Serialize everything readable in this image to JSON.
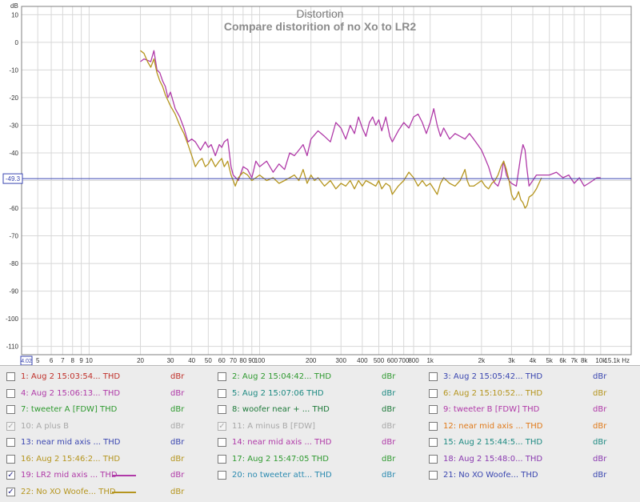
{
  "chart_data": {
    "type": "line",
    "title": "Distortion",
    "subtitle": "Compare distorition of no Xo to LR2",
    "ylabel": "dB",
    "x_scale": "log",
    "xlim": [
      4.02,
      15100
    ],
    "ylim": [
      -113,
      13
    ],
    "y_ticks": [
      10,
      0,
      -10,
      -20,
      -30,
      -40,
      -50,
      -60,
      -70,
      -80,
      -90,
      -100,
      -110
    ],
    "x_ticks": [
      {
        "v": 5,
        "label": "5"
      },
      {
        "v": 6,
        "label": "6"
      },
      {
        "v": 7,
        "label": "7"
      },
      {
        "v": 8,
        "label": "8"
      },
      {
        "v": 9,
        "label": "9"
      },
      {
        "v": 10,
        "label": "10"
      },
      {
        "v": 20,
        "label": "20"
      },
      {
        "v": 30,
        "label": "30"
      },
      {
        "v": 40,
        "label": "40"
      },
      {
        "v": 50,
        "label": "50"
      },
      {
        "v": 60,
        "label": "60"
      },
      {
        "v": 70,
        "label": "70"
      },
      {
        "v": 80,
        "label": "80"
      },
      {
        "v": 90,
        "label": "90"
      },
      {
        "v": 100,
        "label": "100"
      },
      {
        "v": 200,
        "label": "200"
      },
      {
        "v": 300,
        "label": "300"
      },
      {
        "v": 400,
        "label": "400"
      },
      {
        "v": 500,
        "label": "500"
      },
      {
        "v": 600,
        "label": "600"
      },
      {
        "v": 700,
        "label": "700"
      },
      {
        "v": 800,
        "label": "800"
      },
      {
        "v": 1000,
        "label": "1k"
      },
      {
        "v": 2000,
        "label": "2k"
      },
      {
        "v": 3000,
        "label": "3k"
      },
      {
        "v": 4000,
        "label": "4k"
      },
      {
        "v": 5000,
        "label": "5k"
      },
      {
        "v": 6000,
        "label": "6k"
      },
      {
        "v": 7000,
        "label": "7k"
      },
      {
        "v": 8000,
        "label": "8k"
      },
      {
        "v": 10000,
        "label": "10k"
      }
    ],
    "x_start_label": "4.02",
    "x_end_label": "15.1k Hz",
    "cursor_value": -49.3,
    "cursor_label": "-49.3",
    "grid": true,
    "series": [
      {
        "name": "19: LR2 mid axis ... THD",
        "color": "#b03aa8",
        "points": [
          [
            20,
            -7
          ],
          [
            21,
            -6
          ],
          [
            22,
            -6.5
          ],
          [
            23,
            -7
          ],
          [
            24,
            -3
          ],
          [
            25,
            -10
          ],
          [
            26,
            -11
          ],
          [
            27,
            -14
          ],
          [
            28,
            -16
          ],
          [
            29,
            -20
          ],
          [
            30,
            -18
          ],
          [
            32,
            -24
          ],
          [
            34,
            -27
          ],
          [
            36,
            -31
          ],
          [
            38,
            -36
          ],
          [
            40,
            -35
          ],
          [
            42,
            -36
          ],
          [
            45,
            -39
          ],
          [
            48,
            -36
          ],
          [
            50,
            -38
          ],
          [
            52,
            -37
          ],
          [
            55,
            -41
          ],
          [
            58,
            -37
          ],
          [
            60,
            -38
          ],
          [
            62,
            -36
          ],
          [
            65,
            -35
          ],
          [
            68,
            -45
          ],
          [
            70,
            -48
          ],
          [
            75,
            -50
          ],
          [
            80,
            -45
          ],
          [
            85,
            -46
          ],
          [
            90,
            -49
          ],
          [
            95,
            -43
          ],
          [
            100,
            -45
          ],
          [
            110,
            -43
          ],
          [
            120,
            -47
          ],
          [
            130,
            -44
          ],
          [
            140,
            -46
          ],
          [
            150,
            -40
          ],
          [
            160,
            -41
          ],
          [
            170,
            -39
          ],
          [
            180,
            -37
          ],
          [
            190,
            -41
          ],
          [
            200,
            -35
          ],
          [
            220,
            -32
          ],
          [
            240,
            -34
          ],
          [
            260,
            -36
          ],
          [
            280,
            -29
          ],
          [
            300,
            -31
          ],
          [
            320,
            -35
          ],
          [
            340,
            -30
          ],
          [
            360,
            -33
          ],
          [
            380,
            -27
          ],
          [
            400,
            -31
          ],
          [
            420,
            -34
          ],
          [
            440,
            -29
          ],
          [
            460,
            -27
          ],
          [
            480,
            -30
          ],
          [
            500,
            -28
          ],
          [
            520,
            -32
          ],
          [
            550,
            -27
          ],
          [
            580,
            -34
          ],
          [
            600,
            -36
          ],
          [
            650,
            -32
          ],
          [
            700,
            -29
          ],
          [
            750,
            -31
          ],
          [
            800,
            -27
          ],
          [
            850,
            -26
          ],
          [
            900,
            -29
          ],
          [
            950,
            -33
          ],
          [
            1000,
            -29
          ],
          [
            1050,
            -24
          ],
          [
            1100,
            -30
          ],
          [
            1150,
            -34
          ],
          [
            1200,
            -31
          ],
          [
            1300,
            -35
          ],
          [
            1400,
            -33
          ],
          [
            1500,
            -34
          ],
          [
            1600,
            -35
          ],
          [
            1700,
            -33
          ],
          [
            1800,
            -35
          ],
          [
            1900,
            -37
          ],
          [
            2000,
            -39
          ],
          [
            2100,
            -42
          ],
          [
            2200,
            -45
          ],
          [
            2300,
            -49
          ],
          [
            2400,
            -51
          ],
          [
            2500,
            -52
          ],
          [
            2600,
            -49
          ],
          [
            2700,
            -43
          ],
          [
            2800,
            -48
          ],
          [
            2900,
            -50
          ],
          [
            3000,
            -51
          ],
          [
            3200,
            -52
          ],
          [
            3400,
            -41
          ],
          [
            3500,
            -37
          ],
          [
            3600,
            -39
          ],
          [
            3700,
            -46
          ],
          [
            3800,
            -52
          ],
          [
            4000,
            -50
          ],
          [
            4200,
            -48
          ],
          [
            4500,
            -48
          ],
          [
            5000,
            -48
          ],
          [
            5500,
            -47
          ],
          [
            6000,
            -49
          ],
          [
            6500,
            -48
          ],
          [
            7000,
            -51
          ],
          [
            7500,
            -49
          ],
          [
            8000,
            -52
          ],
          [
            8500,
            -51
          ],
          [
            9000,
            -50
          ],
          [
            9500,
            -49
          ],
          [
            10000,
            -49
          ]
        ]
      },
      {
        "name": "22: No XO Woofe... THD",
        "color": "#b5951e",
        "points": [
          [
            20,
            -3
          ],
          [
            21,
            -4
          ],
          [
            22,
            -7
          ],
          [
            23,
            -9
          ],
          [
            24,
            -6
          ],
          [
            25,
            -11
          ],
          [
            26,
            -14
          ],
          [
            27,
            -16
          ],
          [
            28,
            -19
          ],
          [
            29,
            -21
          ],
          [
            30,
            -23
          ],
          [
            32,
            -26
          ],
          [
            34,
            -30
          ],
          [
            36,
            -33
          ],
          [
            38,
            -37
          ],
          [
            40,
            -41
          ],
          [
            42,
            -45
          ],
          [
            44,
            -43
          ],
          [
            46,
            -42
          ],
          [
            48,
            -45
          ],
          [
            50,
            -44
          ],
          [
            52,
            -42
          ],
          [
            55,
            -45
          ],
          [
            58,
            -43
          ],
          [
            60,
            -42
          ],
          [
            62,
            -45
          ],
          [
            65,
            -43
          ],
          [
            68,
            -48
          ],
          [
            70,
            -50
          ],
          [
            72,
            -52
          ],
          [
            75,
            -49
          ],
          [
            80,
            -47
          ],
          [
            85,
            -48
          ],
          [
            90,
            -50
          ],
          [
            95,
            -49
          ],
          [
            100,
            -48
          ],
          [
            110,
            -50
          ],
          [
            120,
            -49
          ],
          [
            130,
            -51
          ],
          [
            140,
            -50
          ],
          [
            150,
            -49
          ],
          [
            160,
            -48
          ],
          [
            170,
            -50
          ],
          [
            180,
            -46
          ],
          [
            190,
            -51
          ],
          [
            200,
            -48
          ],
          [
            210,
            -50
          ],
          [
            220,
            -49
          ],
          [
            240,
            -52
          ],
          [
            260,
            -50
          ],
          [
            280,
            -53
          ],
          [
            300,
            -51
          ],
          [
            320,
            -52
          ],
          [
            340,
            -50
          ],
          [
            360,
            -53
          ],
          [
            380,
            -50
          ],
          [
            400,
            -52
          ],
          [
            420,
            -50
          ],
          [
            450,
            -51
          ],
          [
            480,
            -52
          ],
          [
            500,
            -50
          ],
          [
            520,
            -53
          ],
          [
            550,
            -51
          ],
          [
            580,
            -52
          ],
          [
            600,
            -55
          ],
          [
            650,
            -52
          ],
          [
            700,
            -50
          ],
          [
            750,
            -47
          ],
          [
            800,
            -49
          ],
          [
            850,
            -52
          ],
          [
            900,
            -50
          ],
          [
            950,
            -52
          ],
          [
            1000,
            -51
          ],
          [
            1050,
            -53
          ],
          [
            1100,
            -55
          ],
          [
            1150,
            -51
          ],
          [
            1200,
            -49
          ],
          [
            1300,
            -51
          ],
          [
            1400,
            -52
          ],
          [
            1500,
            -50
          ],
          [
            1600,
            -46
          ],
          [
            1650,
            -50
          ],
          [
            1700,
            -52
          ],
          [
            1800,
            -52
          ],
          [
            1900,
            -51
          ],
          [
            2000,
            -50
          ],
          [
            2100,
            -52
          ],
          [
            2200,
            -53
          ],
          [
            2300,
            -51
          ],
          [
            2400,
            -50
          ],
          [
            2500,
            -48
          ],
          [
            2600,
            -45
          ],
          [
            2700,
            -43
          ],
          [
            2800,
            -46
          ],
          [
            2900,
            -50
          ],
          [
            3000,
            -55
          ],
          [
            3100,
            -57
          ],
          [
            3200,
            -56
          ],
          [
            3300,
            -54
          ],
          [
            3400,
            -57
          ],
          [
            3500,
            -58
          ],
          [
            3600,
            -60
          ],
          [
            3700,
            -59
          ],
          [
            3800,
            -56
          ],
          [
            4000,
            -55
          ],
          [
            4200,
            -53
          ],
          [
            4500,
            -49
          ]
        ]
      }
    ]
  },
  "legend": {
    "entries": [
      {
        "label": "1: Aug 2 15:03:54... THD",
        "unit": "dBr",
        "color": "#c0302a",
        "checked": false,
        "disabled": false
      },
      {
        "label": "2: Aug 2 15:04:42... THD",
        "unit": "dBr",
        "color": "#2f9a30",
        "checked": false,
        "disabled": false
      },
      {
        "label": "3: Aug 2 15:05:42... THD",
        "unit": "dBr",
        "color": "#3a46b0",
        "checked": false,
        "disabled": false
      },
      {
        "label": "4: Aug 2 15:06:13... THD",
        "unit": "dBr",
        "color": "#b03aa8",
        "checked": false,
        "disabled": false
      },
      {
        "label": "5: Aug 2 15:07:06 THD",
        "unit": "dBr",
        "color": "#1e8a82",
        "checked": false,
        "disabled": false
      },
      {
        "label": "6: Aug 2 15:10:52... THD",
        "unit": "dBr",
        "color": "#b5951e",
        "checked": false,
        "disabled": false
      },
      {
        "label": "7: tweeter A [FDW] THD",
        "unit": "dBr",
        "color": "#2f9a30",
        "checked": false,
        "disabled": false
      },
      {
        "label": "8: woofer near + ... THD",
        "unit": "dBr",
        "color": "#1e7a3a",
        "checked": false,
        "disabled": false
      },
      {
        "label": "9: tweeter B [FDW] THD",
        "unit": "dBr",
        "color": "#b03aa8",
        "checked": false,
        "disabled": false
      },
      {
        "label": "10: A plus B",
        "unit": "dBr",
        "color": "#a8a8a8",
        "checked": true,
        "disabled": true
      },
      {
        "label": "11: A minus B [FDW]",
        "unit": "dBr",
        "color": "#a8a8a8",
        "checked": true,
        "disabled": true
      },
      {
        "label": "12: near mid axis ... THD",
        "unit": "dBr",
        "color": "#e07a1a",
        "checked": false,
        "disabled": false
      },
      {
        "label": "13: near mid axis ... THD",
        "unit": "dBr",
        "color": "#3a46b0",
        "checked": false,
        "disabled": false
      },
      {
        "label": "14: near mid axis ... THD",
        "unit": "dBr",
        "color": "#b03aa8",
        "checked": false,
        "disabled": false
      },
      {
        "label": "15: Aug 2 15:44:5... THD",
        "unit": "dBr",
        "color": "#1e8a82",
        "checked": false,
        "disabled": false
      },
      {
        "label": "16: Aug 2 15:46:2... THD",
        "unit": "dBr",
        "color": "#b5951e",
        "checked": false,
        "disabled": false
      },
      {
        "label": "17: Aug 2 15:47:05 THD",
        "unit": "dBr",
        "color": "#2f9a30",
        "checked": false,
        "disabled": false
      },
      {
        "label": "18: Aug 2 15:48:0... THD",
        "unit": "dBr",
        "color": "#8a3ab0",
        "checked": false,
        "disabled": false
      },
      {
        "label": "19: LR2 mid axis ... THD",
        "unit": "dBr",
        "color": "#b03aa8",
        "checked": true,
        "disabled": false,
        "swatch": "#b03aa8"
      },
      {
        "label": "20: no tweeter att... THD",
        "unit": "dBr",
        "color": "#2a8ab0",
        "checked": false,
        "disabled": false
      },
      {
        "label": "21: No XO Woofe... THD",
        "unit": "dBr",
        "color": "#3a46b0",
        "checked": false,
        "disabled": false
      },
      {
        "label": "22: No XO Woofe... THD",
        "unit": "dBr",
        "color": "#b5951e",
        "checked": true,
        "disabled": false,
        "swatch": "#b5951e"
      }
    ]
  }
}
